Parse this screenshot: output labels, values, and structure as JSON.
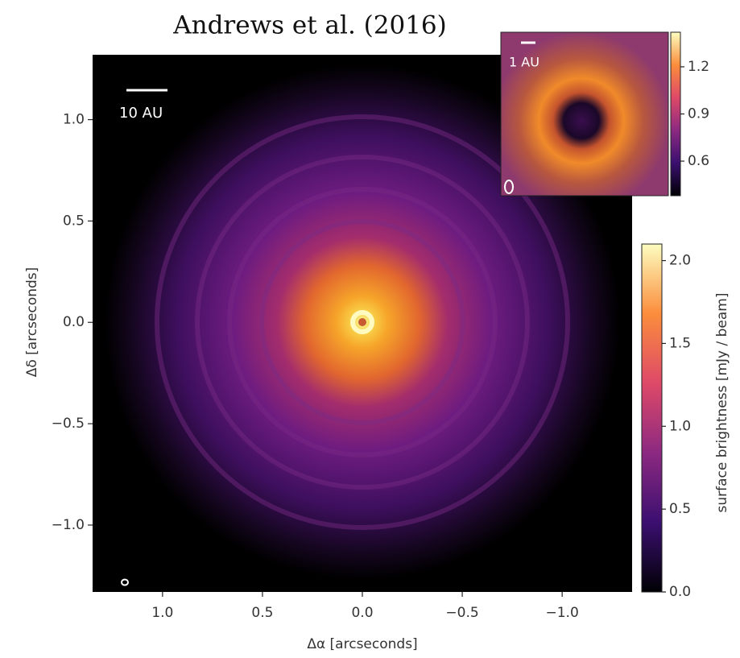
{
  "chart_data": {
    "type": "image",
    "title": "Andrews et al. (2016)",
    "xlabel": "Δα [arcseconds]",
    "ylabel": "Δδ [arcseconds]",
    "xlim": [
      1.35,
      -1.35
    ],
    "ylim": [
      -1.33,
      1.32
    ],
    "xticks": [
      {
        "value": 1.0,
        "label": "1.0"
      },
      0.5,
      {
        "value": 0.0,
        "label": "0.0"
      },
      {
        "value": -0.5,
        "label": "−0.5"
      },
      {
        "value": -1.0,
        "label": "−1.0"
      }
    ],
    "yticks": [
      {
        "value": 1.0,
        "label": "1.0"
      },
      0.5,
      {
        "value": 0.0,
        "label": "0.0"
      },
      {
        "value": -0.5,
        "label": "−0.5"
      },
      {
        "value": -1.0,
        "label": "−1.0"
      }
    ],
    "scale_bar": "10 AU",
    "colorbar": {
      "label": "surface brightness [mJy / beam]",
      "lim": [
        0,
        2.1
      ],
      "ticks": [
        {
          "value": 2.0,
          "label": "2.0"
        },
        1.5,
        {
          "value": 1.0,
          "label": "1.0"
        },
        0.5,
        {
          "value": 0.0,
          "label": "0.0"
        }
      ]
    },
    "inset": {
      "scale_bar": "1 AU",
      "colorbar": {
        "lim": [
          0.38,
          1.42
        ],
        "ticks": [
          1.2,
          0.9,
          0.6
        ]
      }
    }
  }
}
